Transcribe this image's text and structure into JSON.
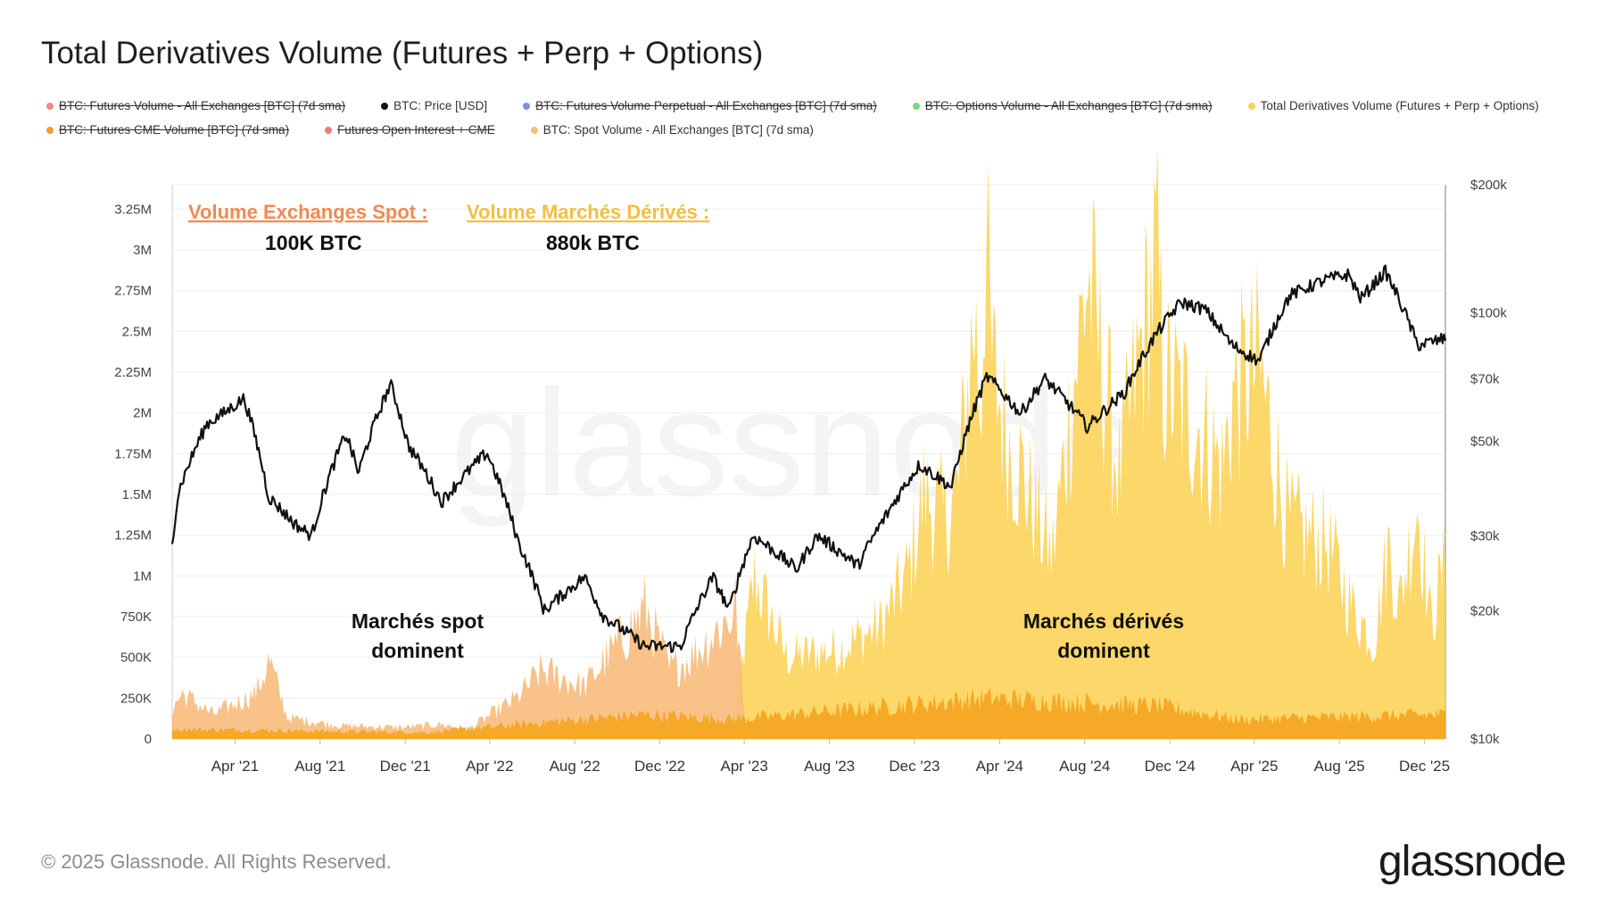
{
  "title": "Total Derivatives Volume (Futures + Perp + Options)",
  "legend": [
    {
      "label": "BTC: Futures Volume - All Exchanges [BTC] (7d sma)",
      "color": "#ef8a8a",
      "enabled": false
    },
    {
      "label": "BTC: Price [USD]",
      "color": "#111111",
      "enabled": true
    },
    {
      "label": "BTC: Futures Volume Perpetual - All Exchanges [BTC] (7d sma)",
      "color": "#7b8ff0",
      "enabled": false
    },
    {
      "label": "BTC: Options Volume - All Exchanges [BTC] (7d sma)",
      "color": "#7dd87d",
      "enabled": false
    },
    {
      "label": "Total Derivatives Volume (Futures + Perp + Options)",
      "color": "#fcd45c",
      "enabled": true
    },
    {
      "label": "BTC: Futures CME Volume [BTC] (7d sma)",
      "color": "#f0a030",
      "enabled": false
    },
    {
      "label": "Futures Open Interest + CME",
      "color": "#f27a7a",
      "enabled": false
    },
    {
      "label": "BTC: Spot Volume - All Exchanges [BTC] (7d sma)",
      "color": "#f7bb7c",
      "enabled": true
    }
  ],
  "annotations": {
    "spot_head": "Volume Exchanges Spot :",
    "spot_value": "100K BTC",
    "deriv_head": "Volume Marchés Dérivés :",
    "deriv_value": "880k BTC",
    "spot_dom_1": "Marchés spot",
    "spot_dom_2": "dominent",
    "deriv_dom_1": "Marchés dérivés",
    "deriv_dom_2": "dominent"
  },
  "watermark": "glassnode",
  "footer": "© 2025 Glassnode. All Rights Reserved.",
  "logo": "glassnode",
  "chart_data": {
    "type": "area",
    "x_range": [
      "2021-01-01",
      "2025-12-31"
    ],
    "x_ticks": [
      "Apr '21",
      "Aug '21",
      "Dec '21",
      "Apr '22",
      "Aug '22",
      "Dec '22",
      "Apr '23",
      "Aug '23",
      "Dec '23",
      "Apr '24",
      "Aug '24",
      "Dec '24",
      "Apr '25",
      "Aug '25",
      "Dec '25"
    ],
    "y_left": {
      "ticks": [
        "0",
        "250K",
        "500K",
        "750K",
        "1M",
        "1.25M",
        "1.5M",
        "1.75M",
        "2M",
        "2.25M",
        "2.5M",
        "2.75M",
        "3M",
        "3.25M"
      ],
      "range": [
        0,
        3400000
      ]
    },
    "y_right": {
      "scale": "log",
      "ticks": [
        "$10k",
        "$20k",
        "$30k",
        "$50k",
        "$70k",
        "$100k",
        "$200k"
      ],
      "range": [
        10000,
        200000
      ]
    },
    "series": [
      {
        "name": "Total Derivatives Volume (Futures + Perp + Options)",
        "axis": "left",
        "color": "#fcd45c",
        "x": [
          "2021-01-01",
          "2021-06-01",
          "2021-12-01",
          "2022-03-01",
          "2022-06-15",
          "2022-10-15",
          "2023-01-15",
          "2023-03-15",
          "2023-04-15",
          "2023-06-01",
          "2023-08-15",
          "2023-10-15",
          "2023-11-20",
          "2023-12-15",
          "2024-01-12",
          "2024-02-01",
          "2024-02-25",
          "2024-03-05",
          "2024-03-12",
          "2024-03-20",
          "2024-04-15",
          "2024-05-01",
          "2024-06-15",
          "2024-08-05",
          "2024-09-20",
          "2024-11-12",
          "2024-11-22",
          "2025-01-15",
          "2025-02-15",
          "2025-03-01",
          "2025-04-07",
          "2025-05-20",
          "2025-07-15",
          "2025-08-20",
          "2025-09-20",
          "2025-10-11",
          "2025-10-25",
          "2025-11-21",
          "2025-12-10",
          "2025-12-31"
        ],
        "values": [
          0,
          0,
          0,
          0,
          0,
          0,
          0,
          0,
          1000000,
          500000,
          550000,
          700000,
          1000000,
          1500000,
          1350000,
          1500000,
          2600000,
          2000000,
          3200000,
          2300000,
          1800000,
          1650000,
          1100000,
          2850000,
          1600000,
          2960000,
          2200000,
          1900000,
          1650000,
          2100000,
          2300000,
          1300000,
          1200000,
          800000,
          600000,
          1200000,
          800000,
          1450000,
          700000,
          1100000
        ]
      },
      {
        "name": "BTC: Spot Volume - All Exchanges [BTC] (7d sma)",
        "axis": "left",
        "color": "#f7bb7c",
        "x": [
          "2021-01-01",
          "2021-01-15",
          "2021-03-01",
          "2021-05-01",
          "2021-05-20",
          "2021-06-15",
          "2021-09-01",
          "2021-12-01",
          "2022-01-20",
          "2022-03-01",
          "2022-05-10",
          "2022-06-15",
          "2022-08-15",
          "2022-11-10",
          "2022-12-15",
          "2023-01-15",
          "2023-03-12",
          "2023-03-20",
          "2023-04-01"
        ],
        "values": [
          180000,
          280000,
          150000,
          280000,
          480000,
          130000,
          80000,
          70000,
          90000,
          60000,
          250000,
          420000,
          320000,
          800000,
          420000,
          500000,
          750000,
          820000,
          140000
        ]
      },
      {
        "name": "BTC: Futures CME Volume [BTC] (7d sma)",
        "axis": "left",
        "color": "#f5a623",
        "x": [
          "2021-01-01",
          "2022-01-01",
          "2022-06-15",
          "2022-11-10",
          "2023-03-15",
          "2024-03-12",
          "2024-11-20",
          "2025-03-10",
          "2025-12-31"
        ],
        "values": [
          60000,
          40000,
          100000,
          150000,
          120000,
          250000,
          200000,
          120000,
          150000
        ]
      },
      {
        "name": "BTC: Price [USD]",
        "axis": "right",
        "color": "#111111",
        "x": [
          "2021-01-01",
          "2021-01-10",
          "2021-02-20",
          "2021-03-15",
          "2021-04-14",
          "2021-05-19",
          "2021-06-25",
          "2021-07-20",
          "2021-09-07",
          "2021-09-25",
          "2021-11-10",
          "2021-12-05",
          "2022-01-22",
          "2022-03-28",
          "2022-05-12",
          "2022-06-18",
          "2022-08-15",
          "2022-09-10",
          "2022-11-09",
          "2022-12-31",
          "2023-02-15",
          "2023-03-10",
          "2023-04-14",
          "2023-06-15",
          "2023-07-15",
          "2023-09-11",
          "2023-10-24",
          "2023-12-08",
          "2024-01-23",
          "2024-03-14",
          "2024-05-01",
          "2024-06-05",
          "2024-08-05",
          "2024-09-27",
          "2024-11-13",
          "2024-12-17",
          "2025-01-20",
          "2025-02-28",
          "2025-04-08",
          "2025-05-22",
          "2025-07-14",
          "2025-08-14",
          "2025-09-01",
          "2025-10-06",
          "2025-11-21",
          "2025-12-31"
        ],
        "values": [
          29000,
          38000,
          55000,
          58000,
          63000,
          37000,
          32000,
          30000,
          52000,
          42000,
          68000,
          49000,
          36000,
          47000,
          29000,
          20000,
          24000,
          19500,
          16500,
          16500,
          24000,
          20000,
          30000,
          25000,
          30000,
          25500,
          34000,
          44000,
          39000,
          71000,
          58000,
          70000,
          54000,
          65000,
          90000,
          106000,
          102000,
          84000,
          77000,
          110000,
          120000,
          123000,
          108000,
          125000,
          84000,
          87000
        ]
      }
    ]
  }
}
